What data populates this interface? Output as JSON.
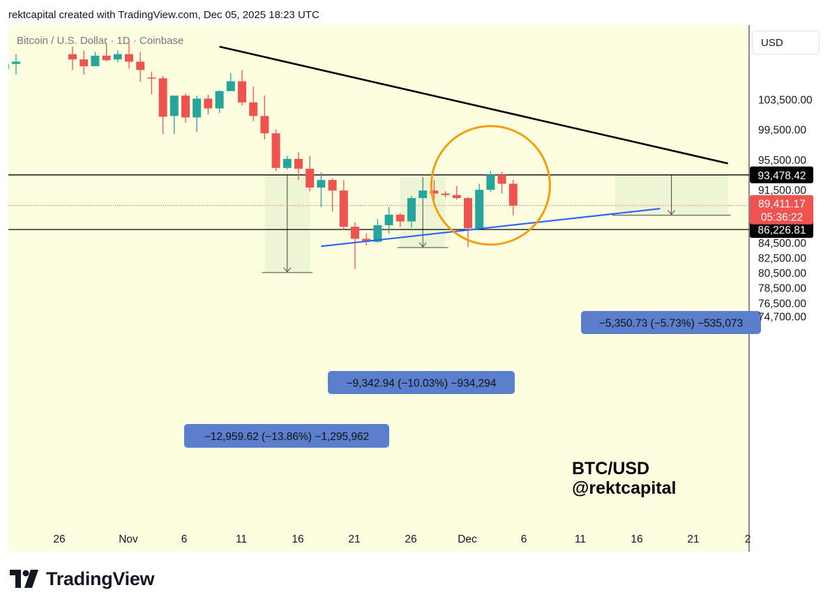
{
  "header": {
    "credit": "rektcapital created with TradingView.com, Dec 05, 2025 18:23 UTC"
  },
  "chart": {
    "symbol_line": "Bitcoin / U.S. Dollar · 1D · Coinbase",
    "currency_button": "USD",
    "background_color": "#fdfde0",
    "up_color": "#26a69a",
    "down_color": "#ef5350",
    "watermark_line1": "BTC/USD",
    "watermark_line2": "@rektcapital"
  },
  "footer": {
    "brand_text": "TradingView",
    "brand_icon": "tradingview-logo-icon"
  },
  "chart_data": {
    "type": "candlestick",
    "title": "Bitcoin / U.S. Dollar · 1D · Coinbase",
    "currency": "USD",
    "x_tick_labels": [
      "26",
      "Nov",
      "6",
      "11",
      "16",
      "21",
      "26",
      "Dec",
      "6",
      "11",
      "16",
      "21",
      "2"
    ],
    "y_tick_labels": [
      "103,500.00",
      "99,500.00",
      "95,500.00",
      "91,500.00",
      "84,500.00",
      "82,500.00",
      "80,500.00",
      "78,500.00",
      "76,500.00",
      "74,700.00"
    ],
    "y_ticks": [
      103500,
      99500,
      95500,
      91500,
      84500,
      82500,
      80500,
      78500,
      76500,
      74700
    ],
    "ylim": [
      73600,
      108800
    ],
    "grid": false,
    "candles": [
      {
        "date": "2025-10-21",
        "o": 107500,
        "h": 109000,
        "l": 106200,
        "c": 108200
      },
      {
        "date": "2025-10-22",
        "o": 108200,
        "h": 109500,
        "l": 106800,
        "c": 108500
      },
      {
        "date": "2025-10-27",
        "o": 109500,
        "h": 110500,
        "l": 107400,
        "c": 108800
      },
      {
        "date": "2025-10-28",
        "o": 108800,
        "h": 110000,
        "l": 106800,
        "c": 107900
      },
      {
        "date": "2025-10-29",
        "o": 107900,
        "h": 109800,
        "l": 108000,
        "c": 109300
      },
      {
        "date": "2025-10-30",
        "o": 109300,
        "h": 111000,
        "l": 108500,
        "c": 108700
      },
      {
        "date": "2025-10-31",
        "o": 108800,
        "h": 110000,
        "l": 108400,
        "c": 109500
      },
      {
        "date": "2025-11-01",
        "o": 109500,
        "h": 111000,
        "l": 107600,
        "c": 108500
      },
      {
        "date": "2025-11-02",
        "o": 108500,
        "h": 109800,
        "l": 105800,
        "c": 107400
      },
      {
        "date": "2025-11-03",
        "o": 106400,
        "h": 107200,
        "l": 104200,
        "c": 106300
      },
      {
        "date": "2025-11-04",
        "o": 106300,
        "h": 106600,
        "l": 98900,
        "c": 101200
      },
      {
        "date": "2025-11-05",
        "o": 101300,
        "h": 104000,
        "l": 98900,
        "c": 104000
      },
      {
        "date": "2025-11-06",
        "o": 104000,
        "h": 104300,
        "l": 100400,
        "c": 101100
      },
      {
        "date": "2025-11-07",
        "o": 101100,
        "h": 104000,
        "l": 99200,
        "c": 103600
      },
      {
        "date": "2025-11-08",
        "o": 103600,
        "h": 104100,
        "l": 101500,
        "c": 102300
      },
      {
        "date": "2025-11-09",
        "o": 102300,
        "h": 104700,
        "l": 101700,
        "c": 104600
      },
      {
        "date": "2025-11-10",
        "o": 104600,
        "h": 107000,
        "l": 104600,
        "c": 105900
      },
      {
        "date": "2025-11-11",
        "o": 105900,
        "h": 107400,
        "l": 102700,
        "c": 103100
      },
      {
        "date": "2025-11-12",
        "o": 103100,
        "h": 105200,
        "l": 100600,
        "c": 101300
      },
      {
        "date": "2025-11-13",
        "o": 101300,
        "h": 104000,
        "l": 98200,
        "c": 99000
      },
      {
        "date": "2025-11-14",
        "o": 99000,
        "h": 99500,
        "l": 94000,
        "c": 94400
      },
      {
        "date": "2025-11-15",
        "o": 94400,
        "h": 96000,
        "l": 94200,
        "c": 95600
      },
      {
        "date": "2025-11-16",
        "o": 95600,
        "h": 96500,
        "l": 92800,
        "c": 94300
      },
      {
        "date": "2025-11-17",
        "o": 94300,
        "h": 96000,
        "l": 91300,
        "c": 91800
      },
      {
        "date": "2025-11-18",
        "o": 91800,
        "h": 93800,
        "l": 89200,
        "c": 92800
      },
      {
        "date": "2025-11-19",
        "o": 92800,
        "h": 93000,
        "l": 88600,
        "c": 91400
      },
      {
        "date": "2025-11-20",
        "o": 91400,
        "h": 92800,
        "l": 86200,
        "c": 86600
      },
      {
        "date": "2025-11-21",
        "o": 86600,
        "h": 87200,
        "l": 81000,
        "c": 85000
      },
      {
        "date": "2025-11-22",
        "o": 85000,
        "h": 85700,
        "l": 84100,
        "c": 84600
      },
      {
        "date": "2025-11-23",
        "o": 84600,
        "h": 87600,
        "l": 84500,
        "c": 86800
      },
      {
        "date": "2025-11-24",
        "o": 86800,
        "h": 89200,
        "l": 85700,
        "c": 88200
      },
      {
        "date": "2025-11-25",
        "o": 88200,
        "h": 88400,
        "l": 86600,
        "c": 87300
      },
      {
        "date": "2025-11-26",
        "o": 87300,
        "h": 90700,
        "l": 86500,
        "c": 90400
      },
      {
        "date": "2025-11-27",
        "o": 90400,
        "h": 91900,
        "l": 90100,
        "c": 91400
      },
      {
        "date": "2025-11-28",
        "o": 91400,
        "h": 92800,
        "l": 90200,
        "c": 91000
      },
      {
        "date": "2025-11-29",
        "o": 91000,
        "h": 91300,
        "l": 90500,
        "c": 90800
      },
      {
        "date": "2025-11-30",
        "o": 90800,
        "h": 92000,
        "l": 90200,
        "c": 90400
      },
      {
        "date": "2025-12-01",
        "o": 90400,
        "h": 90500,
        "l": 83900,
        "c": 86400
      },
      {
        "date": "2025-12-02",
        "o": 86400,
        "h": 92300,
        "l": 86100,
        "c": 91500
      },
      {
        "date": "2025-12-03",
        "o": 91500,
        "h": 94000,
        "l": 91200,
        "c": 93500
      },
      {
        "date": "2025-12-04",
        "o": 93500,
        "h": 93900,
        "l": 91000,
        "c": 92300
      },
      {
        "date": "2025-12-05",
        "o": 92300,
        "h": 92800,
        "l": 88100,
        "c": 89400
      }
    ],
    "horizontal_levels": [
      {
        "value": 93478.42,
        "label": "93,478.42",
        "color": "#000000"
      },
      {
        "value": 86226.81,
        "label": "86,226.81",
        "color": "#000000"
      }
    ],
    "current_price": {
      "value": 89411.17,
      "label": "89,411.17",
      "countdown": "05:36:22",
      "color": "#ef5350"
    },
    "trendlines": [
      {
        "name": "descending resistance",
        "color": "#000000",
        "points": [
          [
            "2025-11-09",
            110500
          ],
          [
            "2025-12-24",
            95000
          ]
        ]
      },
      {
        "name": "ascending support",
        "color": "#2962ff",
        "points": [
          [
            "2025-11-18",
            84000
          ],
          [
            "2025-12-18",
            89000
          ]
        ]
      }
    ],
    "measurements": [
      {
        "label": "−12,959.62 (−13.86%) −1,295,962",
        "from_date": "2025-11-13",
        "to_date": "2025-11-17",
        "top": 93478.42,
        "bottom": 80520
      },
      {
        "label": "−9,342.94 (−10.03%) −934,294",
        "from_date": "2025-11-25",
        "to_date": "2025-11-29",
        "top": 93170,
        "bottom": 83830
      },
      {
        "label": "−5,350.73 (−5.73%) −535,073",
        "from_date": "2025-12-14",
        "to_date": "2025-12-24",
        "top": 93478.42,
        "bottom": 88130
      }
    ],
    "annotations": [
      {
        "type": "circle",
        "color": "#f59e0b",
        "center_date": "2025-12-03",
        "center_value": 92100
      }
    ]
  }
}
